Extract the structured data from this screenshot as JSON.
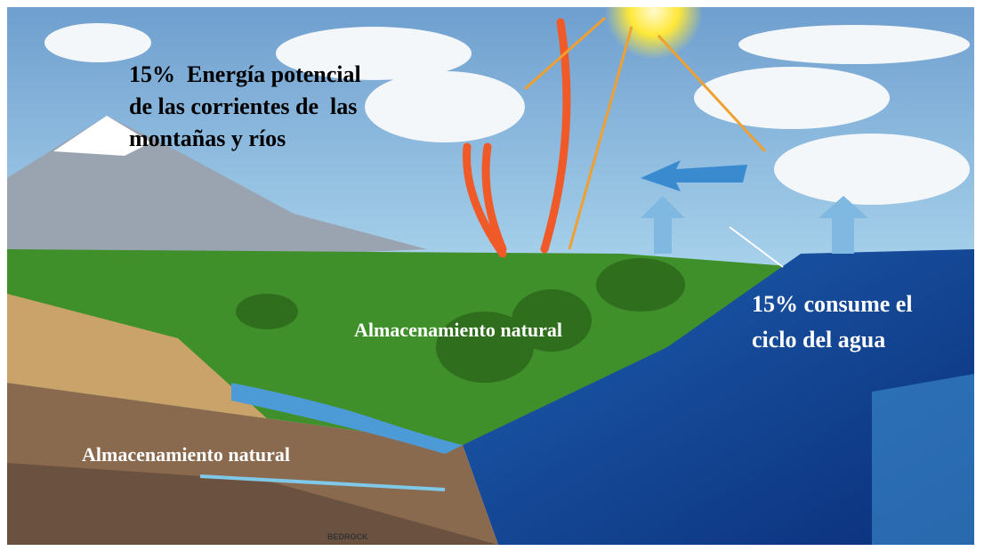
{
  "labels": {
    "energy": [
      "15%  Energía potencial",
      "de las corrientes de  las",
      "montañas y ríos"
    ],
    "storage_land": "Almacenamiento natural",
    "storage_ground": "Almacenamiento natural",
    "cycle": [
      "15% consume el",
      "ciclo del agua"
    ],
    "bedrock": "BEDROCK"
  }
}
